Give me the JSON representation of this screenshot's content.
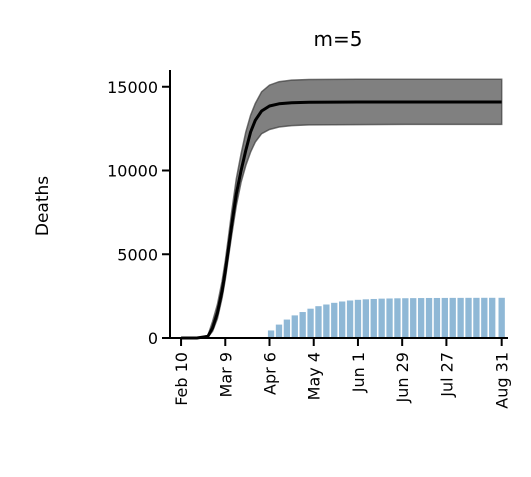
{
  "chart_data": {
    "type": "line",
    "title": "m=5",
    "xlabel": "",
    "ylabel": "Deaths",
    "ylim": [
      0,
      16000
    ],
    "xlim": [
      "2020-02-03",
      "2020-09-04"
    ],
    "x_ticks": [
      {
        "date": "2020-02-10",
        "label": "Feb 10"
      },
      {
        "date": "2020-03-09",
        "label": "Mar 9"
      },
      {
        "date": "2020-04-06",
        "label": "Apr 6"
      },
      {
        "date": "2020-05-04",
        "label": "May 4"
      },
      {
        "date": "2020-06-01",
        "label": "Jun 1"
      },
      {
        "date": "2020-06-29",
        "label": "Jun 29"
      },
      {
        "date": "2020-07-27",
        "label": "Jul 27"
      },
      {
        "date": "2020-08-31",
        "label": "Aug 31"
      }
    ],
    "y_ticks": [
      {
        "value": 0,
        "label": "0"
      },
      {
        "value": 5000,
        "label": "5000"
      },
      {
        "value": 10000,
        "label": "10000"
      },
      {
        "value": 15000,
        "label": "15000"
      }
    ],
    "grid": false,
    "colors": {
      "median_line": "#000000",
      "interval_band": "#808080",
      "observed_bars": "#8fb8d6"
    },
    "series": [
      {
        "type": "line",
        "x": [
          "2020-02-10",
          "2020-02-20",
          "2020-02-27",
          "2020-03-01",
          "2020-03-04",
          "2020-03-07",
          "2020-03-09",
          "2020-03-11",
          "2020-03-13",
          "2020-03-16",
          "2020-03-19",
          "2020-03-22",
          "2020-03-25",
          "2020-03-28",
          "2020-04-01",
          "2020-04-06",
          "2020-04-12",
          "2020-04-20",
          "2020-05-01",
          "2020-06-01",
          "2020-07-01",
          "2020-08-01",
          "2020-08-31"
        ],
        "y": [
          0,
          0,
          100,
          600,
          1500,
          2800,
          4000,
          5300,
          6700,
          8600,
          10000,
          11200,
          12300,
          13000,
          13550,
          13850,
          13980,
          14050,
          14080,
          14090,
          14090,
          14090,
          14090
        ]
      },
      {
        "type": "band",
        "x": [
          "2020-02-10",
          "2020-02-20",
          "2020-02-27",
          "2020-03-01",
          "2020-03-04",
          "2020-03-07",
          "2020-03-09",
          "2020-03-11",
          "2020-03-13",
          "2020-03-16",
          "2020-03-19",
          "2020-03-22",
          "2020-03-25",
          "2020-03-28",
          "2020-04-01",
          "2020-04-06",
          "2020-04-12",
          "2020-04-20",
          "2020-05-01",
          "2020-06-01",
          "2020-07-01",
          "2020-08-01",
          "2020-08-31"
        ],
        "lower": [
          0,
          0,
          60,
          400,
          1150,
          2400,
          3500,
          4800,
          6100,
          7900,
          9300,
          10300,
          11100,
          11700,
          12200,
          12450,
          12600,
          12680,
          12720,
          12740,
          12750,
          12750,
          12750
        ],
        "upper": [
          0,
          0,
          150,
          1000,
          2000,
          3400,
          4600,
          6000,
          7500,
          9500,
          11000,
          12300,
          13300,
          14000,
          14700,
          15100,
          15300,
          15400,
          15430,
          15450,
          15450,
          15450,
          15450
        ]
      },
      {
        "type": "bar",
        "x": [
          "2020-04-02",
          "2020-04-07",
          "2020-04-12",
          "2020-04-17",
          "2020-04-22",
          "2020-04-27",
          "2020-05-02",
          "2020-05-07",
          "2020-05-12",
          "2020-05-17",
          "2020-05-22",
          "2020-05-27",
          "2020-06-01",
          "2020-06-06",
          "2020-06-11",
          "2020-06-16",
          "2020-06-21",
          "2020-06-26",
          "2020-07-01",
          "2020-07-06",
          "2020-07-11",
          "2020-07-16",
          "2020-07-21",
          "2020-07-26",
          "2020-07-31",
          "2020-08-05",
          "2020-08-10",
          "2020-08-15",
          "2020-08-20",
          "2020-08-25",
          "2020-08-31"
        ],
        "values": [
          50,
          450,
          800,
          1100,
          1350,
          1550,
          1750,
          1900,
          2000,
          2100,
          2180,
          2240,
          2280,
          2310,
          2330,
          2350,
          2360,
          2370,
          2375,
          2380,
          2385,
          2390,
          2390,
          2392,
          2395,
          2395,
          2398,
          2398,
          2400,
          2400,
          2400
        ]
      }
    ]
  }
}
